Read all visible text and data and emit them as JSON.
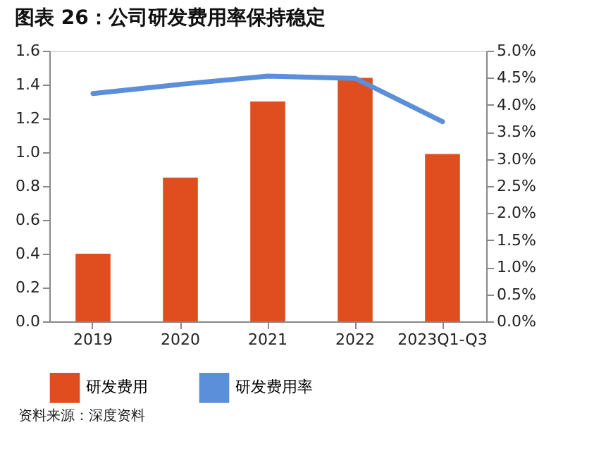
{
  "chart_data": {
    "type": "bar",
    "title": "图表 26：公司研发费用率保持稳定",
    "categories": [
      "2019",
      "2020",
      "2021",
      "2022",
      "2023Q1-Q3"
    ],
    "series": [
      {
        "name": "研发费用",
        "color": "#e04e1f",
        "values": [
          0.4,
          0.85,
          1.3,
          1.44,
          0.99
        ]
      },
      {
        "name": "研发费用率",
        "type": "line",
        "axis": "y2",
        "color": "#5b8fd9",
        "values": [
          4.21,
          4.38,
          4.53,
          4.49,
          3.69
        ]
      }
    ],
    "ylim": [
      0,
      1.6
    ],
    "yticks": [
      {
        "value": 0,
        "label": "0.0"
      },
      {
        "value": 0.2,
        "label": "0.2"
      },
      {
        "value": 0.4,
        "label": "0.4"
      },
      {
        "value": 0.6,
        "label": "0.6"
      },
      {
        "value": 0.8,
        "label": "0.8"
      },
      {
        "value": 1.0,
        "label": "1.0"
      },
      {
        "value": 1.2,
        "label": "1.2"
      },
      {
        "value": 1.4,
        "label": "1.4"
      },
      {
        "value": 1.6,
        "label": "1.6"
      }
    ],
    "y2lim": [
      0,
      5
    ],
    "y2ticks": [
      {
        "value": 0,
        "label": "0.0%"
      },
      {
        "value": 0.5,
        "label": "0.5%"
      },
      {
        "value": 1,
        "label": "1.0%"
      },
      {
        "value": 1.5,
        "label": "1.5%"
      },
      {
        "value": 2,
        "label": "2.0%"
      },
      {
        "value": 2.5,
        "label": "2.5%"
      },
      {
        "value": 3,
        "label": "3.0%"
      },
      {
        "value": 3.5,
        "label": "3.5%"
      },
      {
        "value": 4,
        "label": "4.0%"
      },
      {
        "value": 4.5,
        "label": "4.5%"
      },
      {
        "value": 5,
        "label": "5.0%"
      }
    ],
    "legend": "bottom",
    "grid": false,
    "annotations": [
      "资料来源：深度资料"
    ]
  }
}
